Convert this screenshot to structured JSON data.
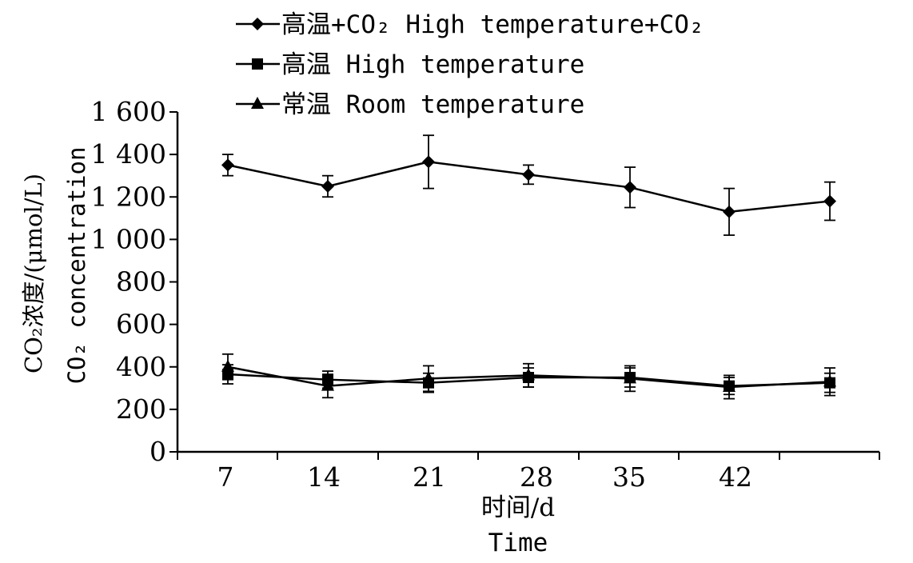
{
  "chart_data": {
    "type": "line",
    "x": [
      "7",
      "14",
      "21",
      "28",
      "35",
      "42",
      ""
    ],
    "xlabel": [
      "时间/d",
      "Time"
    ],
    "ylabel": [
      "CO₂浓度/(μmol/L)",
      "CO₂ concentration"
    ],
    "ylim": [
      0,
      1600
    ],
    "yticks": [
      {
        "value": 0,
        "label": "0"
      },
      {
        "value": 200,
        "label": "200"
      },
      {
        "value": 400,
        "label": "400"
      },
      {
        "value": 600,
        "label": "600"
      },
      {
        "value": 800,
        "label": "800"
      },
      {
        "value": 1000,
        "label": "1 000"
      },
      {
        "value": 1200,
        "label": "1 200"
      },
      {
        "value": 1400,
        "label": "1 400"
      },
      {
        "value": 1600,
        "label": "1 600"
      }
    ],
    "grid": false,
    "legend_position": "top",
    "series": [
      {
        "name": "高温+CO₂ High temperature+CO₂",
        "marker": "diamond",
        "values": [
          1350,
          1250,
          1365,
          1305,
          1245,
          1130,
          1180
        ],
        "errors": [
          50,
          50,
          125,
          45,
          95,
          110,
          90
        ]
      },
      {
        "name": "高温 High temperature",
        "marker": "square",
        "values": [
          365,
          340,
          325,
          350,
          350,
          310,
          325
        ],
        "errors": [
          45,
          40,
          45,
          45,
          45,
          40,
          45
        ]
      },
      {
        "name": "常温 Room temperature",
        "marker": "triangle",
        "values": [
          400,
          310,
          345,
          360,
          345,
          305,
          330
        ],
        "errors": [
          60,
          55,
          60,
          55,
          60,
          55,
          65
        ]
      }
    ]
  }
}
